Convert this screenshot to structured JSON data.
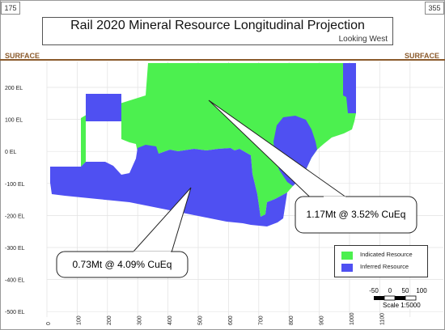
{
  "header": {
    "corner_left": "175",
    "corner_right": "355",
    "title": "Rail 2020 Mineral Resource Longitudinal Projection",
    "subtitle": "Looking West"
  },
  "surface": {
    "left_label": "SURFACE",
    "right_label": "SURFACE"
  },
  "axes": {
    "y_labels": [
      "200 EL",
      "100 EL",
      "0 EL",
      "-100 EL",
      "-200 EL",
      "-300 EL",
      "-400 EL",
      "-500 EL"
    ],
    "x_labels": [
      "0",
      "100",
      "200",
      "300",
      "400",
      "500",
      "600",
      "700",
      "800",
      "900",
      "1000",
      "1100"
    ]
  },
  "callouts": {
    "indicated": "1.17Mt @ 3.52% CuEq",
    "inferred": "0.73Mt @ 4.09% CuEq"
  },
  "legend": {
    "items": [
      {
        "label": "Indicated Resource",
        "color": "#4cf04f"
      },
      {
        "label": "Inferred Resource",
        "color": "#4f50f2"
      }
    ]
  },
  "scale_bar": {
    "ticks": [
      "-50",
      "0",
      "50",
      "100"
    ],
    "caption": "Scale 1:5000"
  },
  "colors": {
    "indicated": "#4cf04f",
    "inferred": "#4f50f2",
    "surface_line": "#8b5a2b"
  }
}
